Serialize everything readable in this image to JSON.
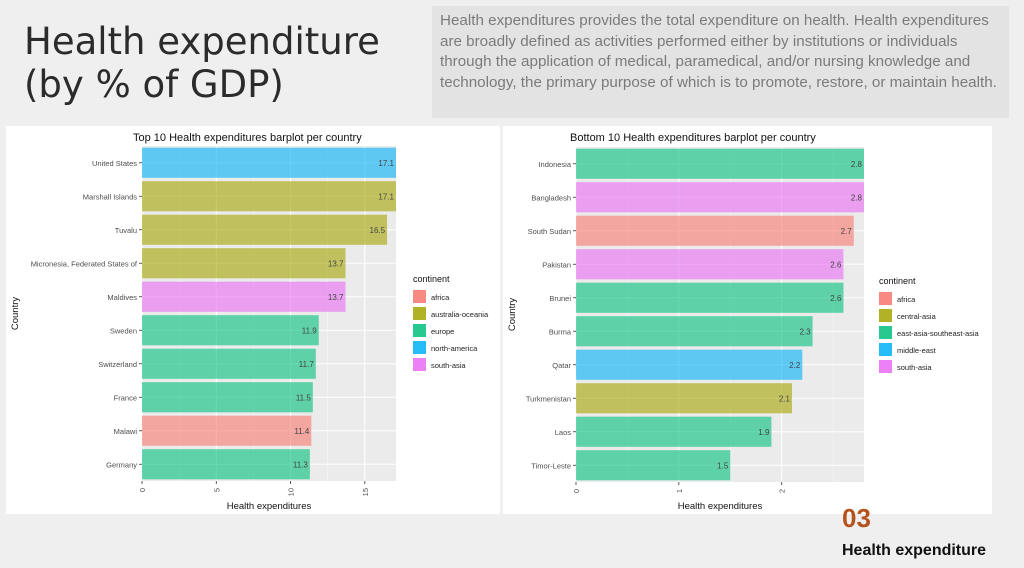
{
  "slide": {
    "title": "Health expenditure (by % of GDP)",
    "description": "Health expenditures provides the total expenditure on health. Health expenditures are broadly defined as activities performed either by institutions or individuals through the application of medical, paramedical, and/or nursing knowledge and technology, the primary purpose of which is to promote, restore, or maintain health.",
    "number": "03",
    "footer": "Health expenditure"
  },
  "colors": {
    "africa": "#F8766D",
    "australia-oceania": "#A3A500",
    "europe": "#00BF7D",
    "north-america": "#00B0F6",
    "south-asia": "#E76BF3",
    "central-asia": "#A3A500",
    "east-asia-southeast-asia": "#00BF7D",
    "middle-east": "#00B0F6"
  },
  "chart_data": [
    {
      "type": "bar",
      "orientation": "horizontal",
      "title": "Top 10 Health expenditures barplot per country",
      "xlabel": "Health expenditures",
      "ylabel": "Country",
      "xlim": [
        0,
        17.1
      ],
      "xticks": [
        "0",
        "5",
        "10",
        "15"
      ],
      "tick_values": [
        0,
        5,
        10,
        15
      ],
      "legend_title": "continent",
      "legend_position": "right",
      "legend": [
        "africa",
        "australia-oceania",
        "europe",
        "north-america",
        "south-asia"
      ],
      "categories": [
        "United States",
        "Marshall Islands",
        "Tuvalu",
        "Micronesia, Federated States of",
        "Maldives",
        "Sweden",
        "Switzerland",
        "France",
        "Malawi",
        "Germany"
      ],
      "values": [
        17.1,
        17.1,
        16.5,
        13.7,
        13.7,
        11.9,
        11.7,
        11.5,
        11.4,
        11.3
      ],
      "labels": [
        "17.1",
        "17.1",
        "16.5",
        "13.7",
        "13.7",
        "11.9",
        "11.7",
        "11.5",
        "11.4",
        "11.3"
      ],
      "continent": [
        "north-america",
        "australia-oceania",
        "australia-oceania",
        "australia-oceania",
        "south-asia",
        "europe",
        "europe",
        "europe",
        "africa",
        "europe"
      ],
      "grid": true
    },
    {
      "type": "bar",
      "orientation": "horizontal",
      "title": "Bottom 10 Health expenditures barplot per country",
      "xlabel": "Health expenditures",
      "ylabel": "Country",
      "xlim": [
        0,
        2.8
      ],
      "xticks": [
        "0",
        "1",
        "2"
      ],
      "tick_values": [
        0,
        1,
        2
      ],
      "legend_title": "continent",
      "legend_position": "right",
      "legend": [
        "africa",
        "central-asia",
        "east-asia-southeast-asia",
        "middle-east",
        "south-asia"
      ],
      "categories": [
        "Indonesia",
        "Bangladesh",
        "South Sudan",
        "Pakistan",
        "Brunei",
        "Burma",
        "Qatar",
        "Turkmenistan",
        "Laos",
        "Timor-Leste"
      ],
      "values": [
        2.8,
        2.8,
        2.7,
        2.6,
        2.6,
        2.3,
        2.2,
        2.1,
        1.9,
        1.5
      ],
      "labels": [
        "2.8",
        "2.8",
        "2.7",
        "2.6",
        "2.6",
        "2.3",
        "2.2",
        "2.1",
        "1.9",
        "1.5"
      ],
      "continent": [
        "east-asia-southeast-asia",
        "south-asia",
        "africa",
        "south-asia",
        "east-asia-southeast-asia",
        "east-asia-southeast-asia",
        "middle-east",
        "central-asia",
        "east-asia-southeast-asia",
        "east-asia-southeast-asia"
      ],
      "grid": true
    }
  ]
}
